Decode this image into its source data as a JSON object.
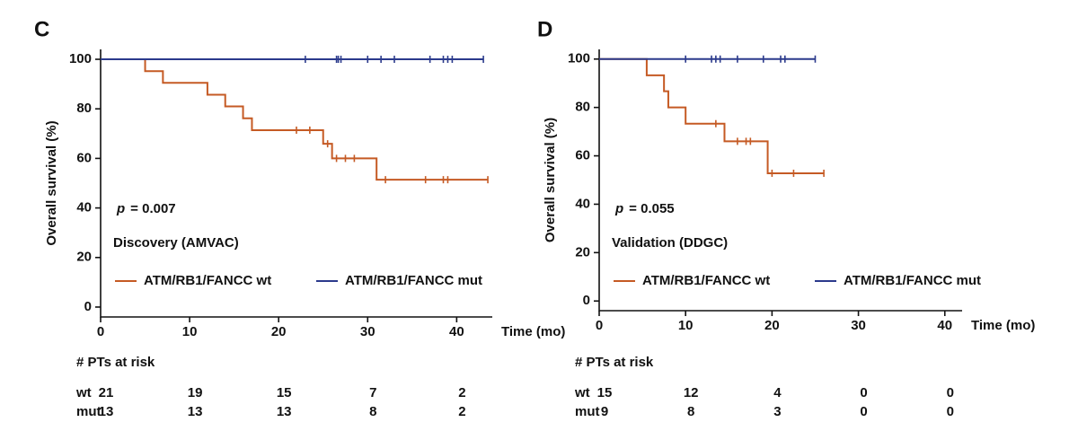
{
  "chart_data": [
    {
      "type": "step",
      "panel": "C",
      "ylabel": "Overall survival (%)",
      "xlabel": "Time (mo)",
      "xlim": [
        0,
        44
      ],
      "xticks": [
        0,
        10,
        20,
        30,
        40
      ],
      "ylim": [
        -4,
        104
      ],
      "yticks": [
        0,
        20,
        40,
        60,
        80,
        100
      ],
      "p_symbol": "p",
      "p_text": "= 0.007",
      "cohort": "Discovery (AMVAC)",
      "series": [
        {
          "name": "ATM/RB1/FANCC wt",
          "color": "#c55a24",
          "x": [
            0,
            5,
            7,
            12,
            14,
            16,
            17,
            25,
            26,
            31,
            43.5
          ],
          "values": [
            100,
            95.2,
            90.5,
            85.7,
            81,
            76.2,
            71.4,
            65.9,
            60,
            51.4,
            51.4
          ],
          "censor_x": [
            22,
            23.5,
            25.5,
            26.5,
            27.5,
            28.5,
            32,
            36.5,
            38.5,
            39,
            43.5
          ],
          "censor_values": [
            71.4,
            71.4,
            65.9,
            60,
            60,
            60,
            51.4,
            51.4,
            51.4,
            51.4,
            51.4
          ]
        },
        {
          "name": "ATM/RB1/FANCC mut",
          "color": "#2b3a8c",
          "x": [
            0,
            43
          ],
          "values": [
            100,
            100
          ],
          "censor_x": [
            23,
            26.5,
            26.7,
            27,
            30,
            31.5,
            33,
            37,
            38.5,
            39,
            39.5,
            43
          ],
          "censor_values": [
            100,
            100,
            100,
            100,
            100,
            100,
            100,
            100,
            100,
            100,
            100,
            100
          ]
        }
      ],
      "risk_table": {
        "title": "# PTs at risk",
        "rows": [
          {
            "name": "wt",
            "values": [
              21,
              19,
              15,
              7,
              2
            ]
          },
          {
            "name": "mut",
            "values": [
              13,
              13,
              13,
              8,
              2
            ]
          }
        ]
      }
    },
    {
      "type": "step",
      "panel": "D",
      "ylabel": "Overall survival (%)",
      "xlabel": "Time (mo)",
      "xlim": [
        0,
        42
      ],
      "xticks": [
        0,
        10,
        20,
        30,
        40
      ],
      "ylim": [
        -4,
        104
      ],
      "yticks": [
        0,
        20,
        40,
        60,
        80,
        100
      ],
      "p_symbol": "p",
      "p_text": "= 0.055",
      "cohort": "Validation (DDGC)",
      "series": [
        {
          "name": "ATM/RB1/FANCC wt",
          "color": "#c55a24",
          "x": [
            0,
            5.5,
            7.5,
            8,
            10,
            14.5,
            19.5,
            26
          ],
          "values": [
            100,
            93.3,
            86.7,
            80,
            73.3,
            66,
            52.8,
            52.8
          ],
          "censor_x": [
            13.5,
            16,
            17,
            17.5,
            20,
            22.5,
            26
          ],
          "censor_values": [
            73.3,
            66,
            66,
            66,
            52.8,
            52.8,
            52.8
          ]
        },
        {
          "name": "ATM/RB1/FANCC mut",
          "color": "#2b3a8c",
          "x": [
            0,
            25
          ],
          "values": [
            100,
            100
          ],
          "censor_x": [
            10,
            13,
            13.5,
            14,
            16,
            19,
            21,
            21.5,
            25
          ],
          "censor_values": [
            100,
            100,
            100,
            100,
            100,
            100,
            100,
            100,
            100
          ]
        }
      ],
      "risk_table": {
        "title": "# PTs at risk",
        "rows": [
          {
            "name": "wt",
            "values": [
              15,
              12,
              4,
              0,
              0
            ]
          },
          {
            "name": "mut",
            "values": [
              9,
              8,
              3,
              0,
              0
            ]
          }
        ]
      }
    }
  ]
}
